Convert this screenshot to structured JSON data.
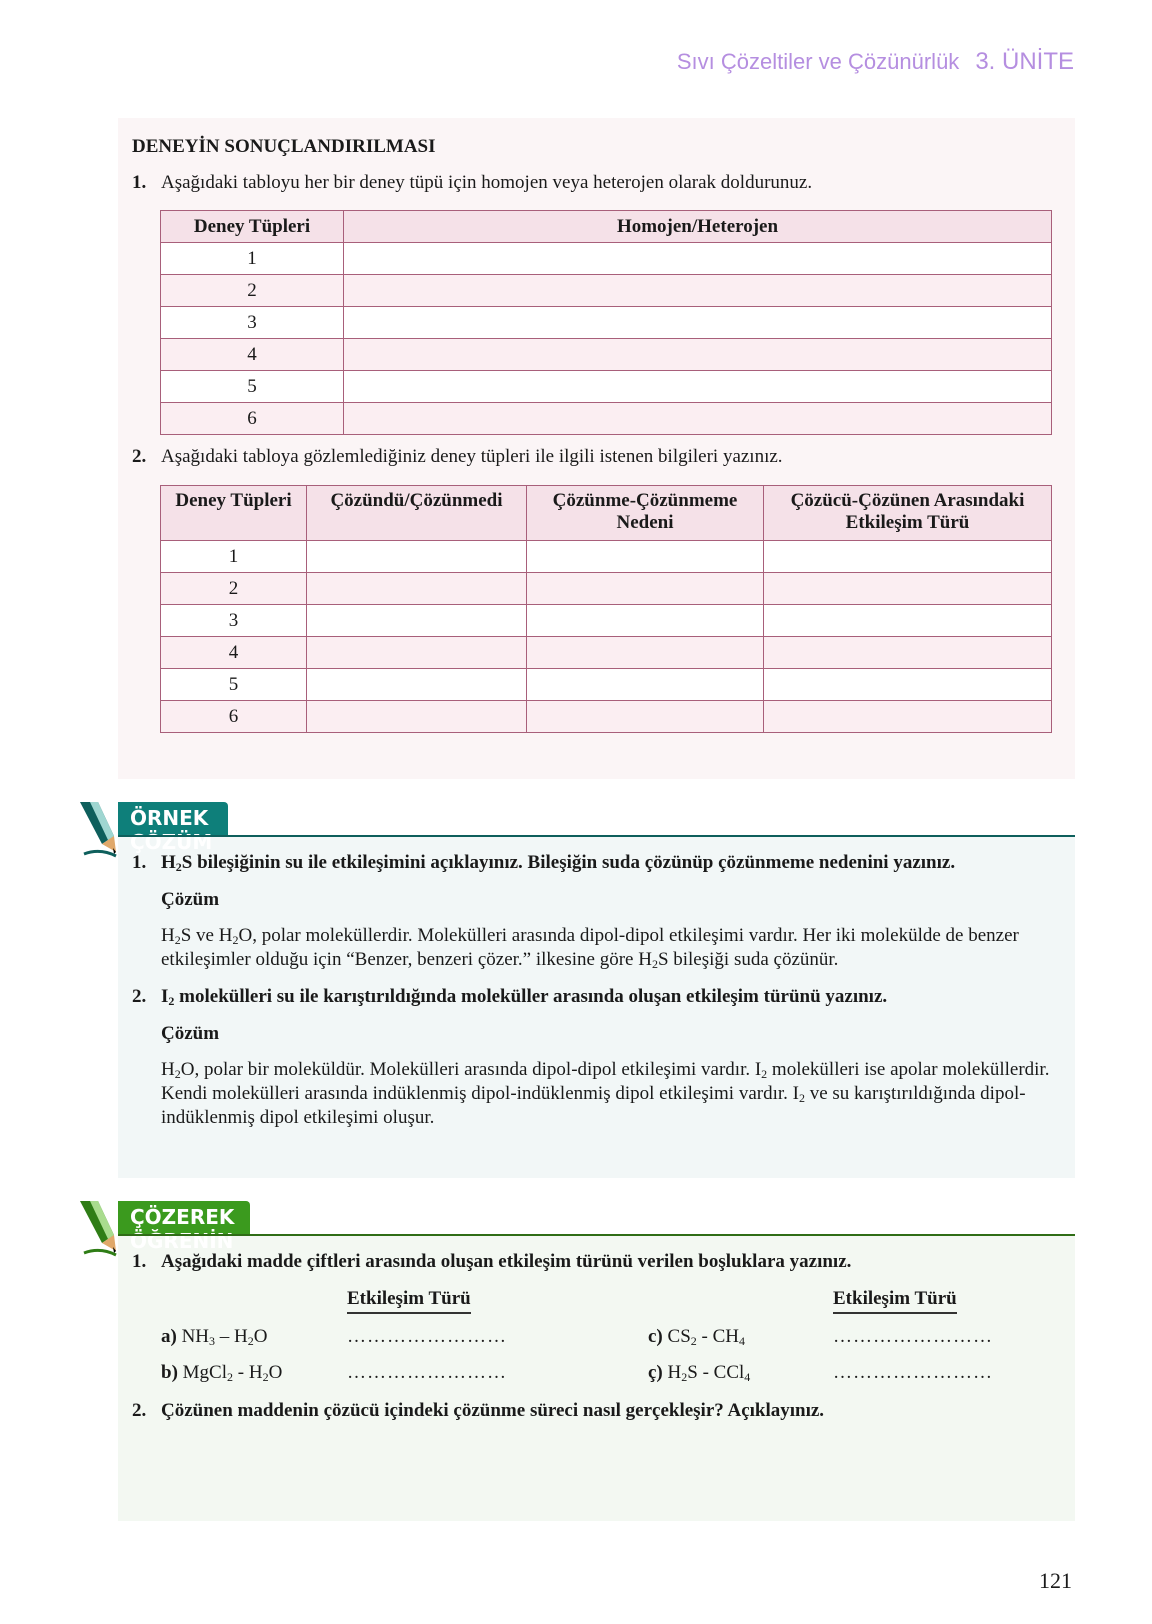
{
  "header": {
    "title": "Sıvı Çözeltiler ve Çözünürlük",
    "unit": "3. ÜNİTE"
  },
  "section1": {
    "title": "DENEYİN SONUÇLANDIRILMASI",
    "q1": {
      "num": "1.",
      "text": "Aşağıdaki tabloyu her bir deney tüpü için homojen veya heterojen olarak doldurunuz."
    },
    "table1": {
      "headers": [
        "Deney Tüpleri",
        "Homojen/Heterojen"
      ],
      "rows": [
        "1",
        "2",
        "3",
        "4",
        "5",
        "6"
      ]
    },
    "q2": {
      "num": "2.",
      "text": "Aşağıdaki tabloya gözlemlediğiniz deney tüpleri ile ilgili istenen bilgileri yazınız."
    },
    "table2": {
      "headers": [
        "Deney Tüpleri",
        "Çözündü/Çözünmedi",
        "Çözünme-Çözünmeme Nedeni",
        "Çözücü-Çözünen Arasındaki Etkileşim Türü"
      ],
      "rows": [
        "1",
        "2",
        "3",
        "4",
        "5",
        "6"
      ]
    }
  },
  "ornek": {
    "banner": "ÖRNEK ÇÖZÜM",
    "color": "#0e7f7a",
    "q1": {
      "num": "1.",
      "text": "H2S bileşiğinin su ile etkileşimini açıklayınız. Bileşiğin suda çözünüp çözünmeme nedenini yazınız.",
      "sol_label": "Çözüm",
      "sol": "H2S ve H2O, polar moleküllerdir. Molekülleri arasında dipol-dipol etkileşimi vardır. Her iki molekülde de benzer etkileşimler olduğu için “Benzer, benzeri çözer.” ilkesine göre H2S bileşiği suda çözünür."
    },
    "q2": {
      "num": "2.",
      "text": "I2 molekülleri su ile karıştırıldığında moleküller arasında oluşan etkileşim türünü yazınız.",
      "sol_label": "Çözüm",
      "sol": "H2O, polar bir moleküldür. Molekülleri arasında dipol-dipol etkileşimi vardır. I2 molekülleri ise apolar moleküllerdir. Kendi molekülleri arasında indüklenmiş dipol-indüklenmiş dipol etkileşimi vardır. I2 ve su karıştırıldığında dipol-indüklenmiş dipol etkileşimi oluşur."
    }
  },
  "cozerek": {
    "banner": "ÇÖZEREK ÖĞRENİN",
    "color": "#3b9a1e",
    "q1": {
      "num": "1.",
      "text": "Aşağıdaki madde çiftleri arasında oluşan etkileşim türünü verilen boşluklara yazınız.",
      "col_header": "Etkileşim Türü",
      "items": [
        {
          "label": "a)",
          "pair": "NH3 – H2O"
        },
        {
          "label": "b)",
          "pair": "MgCl2 - H2O"
        },
        {
          "label": "c)",
          "pair": "CS2 - CH4"
        },
        {
          "label": "ç)",
          "pair": "H2S - CCl4"
        }
      ],
      "blank": "……………………"
    },
    "q2": {
      "num": "2.",
      "text": "Çözünen maddenin çözücü içindeki çözünme süreci nasıl gerçekleşir? Açıklayınız."
    }
  },
  "page_number": "121"
}
